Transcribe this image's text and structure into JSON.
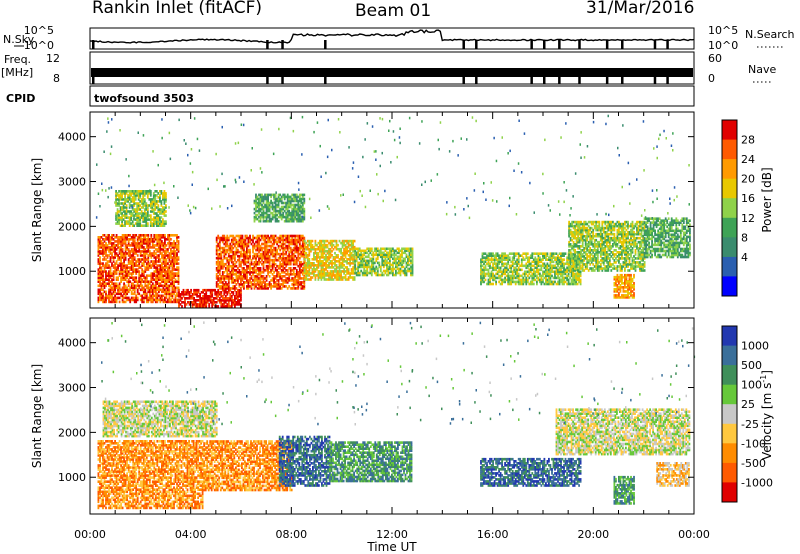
{
  "header": {
    "station": "Rankin Inlet (fitACF)",
    "beam": "Beam 01",
    "date": "31/Mar/2016"
  },
  "status_panels": {
    "nsky_label": "N.Sky",
    "nsearch_label": "N.Search",
    "nsky_ticks": [
      "10^5",
      "10^0"
    ],
    "nsearch_ticks": [
      "10^5",
      "10^0"
    ],
    "freq_label_line1": "Freq.",
    "freq_label_line2": "[MHz]",
    "freq_ticks": [
      "12",
      "8"
    ],
    "nave_label": "Nave",
    "nave_ticks": [
      "60",
      "0"
    ],
    "cpid_label": "CPID",
    "cpid_value": "twofsound 3503"
  },
  "chart_data": [
    {
      "type": "heatmap",
      "name": "power",
      "ylabel": "Slant Range [km]",
      "xlabel": "",
      "yticks": [
        1000,
        2000,
        3000,
        4000
      ],
      "ylim": [
        180,
        4550
      ],
      "xlim": [
        0,
        24
      ],
      "colorbar": {
        "label": "Power [dB]",
        "ticks": [
          "28",
          "24",
          "20",
          "16",
          "12",
          "8",
          "4"
        ],
        "colors": [
          "#e00000",
          "#ff5a00",
          "#ff9a00",
          "#e8c800",
          "#8fd24a",
          "#3ea356",
          "#3a8c6e",
          "#2a5fb0",
          "#0000ff"
        ]
      },
      "regions": [
        {
          "t0": 0.3,
          "t1": 3.5,
          "r0": 300,
          "r1": 1800,
          "level": 7
        },
        {
          "t0": 1.0,
          "t1": 3.0,
          "r0": 2000,
          "r1": 2800,
          "level": 4
        },
        {
          "t0": 3.5,
          "t1": 6.0,
          "r0": 200,
          "r1": 600,
          "level": 8
        },
        {
          "t0": 5.0,
          "t1": 8.5,
          "r0": 600,
          "r1": 1800,
          "level": 7
        },
        {
          "t0": 8.5,
          "t1": 10.5,
          "r0": 800,
          "r1": 1700,
          "level": 5
        },
        {
          "t0": 10.5,
          "t1": 12.8,
          "r0": 900,
          "r1": 1500,
          "level": 4
        },
        {
          "t0": 6.5,
          "t1": 8.5,
          "r0": 2100,
          "r1": 2700,
          "level": 3
        },
        {
          "t0": 15.5,
          "t1": 19.5,
          "r0": 700,
          "r1": 1400,
          "level": 4
        },
        {
          "t0": 19.0,
          "t1": 22.0,
          "r0": 1000,
          "r1": 2100,
          "level": 4
        },
        {
          "t0": 20.8,
          "t1": 21.6,
          "r0": 400,
          "r1": 900,
          "level": 6
        },
        {
          "t0": 22.0,
          "t1": 23.8,
          "r0": 1300,
          "r1": 2200,
          "level": 3
        }
      ]
    },
    {
      "type": "heatmap",
      "name": "velocity",
      "ylabel": "Slant Range [km]",
      "xlabel": "Time UT",
      "xticks": [
        "00:00",
        "04:00",
        "08:00",
        "12:00",
        "16:00",
        "20:00",
        "00:00"
      ],
      "yticks": [
        1000,
        2000,
        3000,
        4000
      ],
      "ylim": [
        180,
        4550
      ],
      "xlim": [
        0,
        24
      ],
      "colorbar": {
        "label": "Velocity [m s^-1]",
        "ticks": [
          "1000",
          "500",
          "100",
          "25",
          "-25",
          "-100",
          "-500",
          "-1000"
        ],
        "colors": [
          "#2238b0",
          "#3a6f9a",
          "#3f8f5a",
          "#66c83a",
          "#c8c8c8",
          "#ffc840",
          "#ff8c00",
          "#ff5a00",
          "#e00000"
        ]
      },
      "regions": [
        {
          "t0": 0.3,
          "t1": 4.5,
          "r0": 300,
          "r1": 1800,
          "level": 2
        },
        {
          "t0": 0.5,
          "t1": 5.0,
          "r0": 1900,
          "r1": 2700,
          "level": 4
        },
        {
          "t0": 4.5,
          "t1": 8.0,
          "r0": 700,
          "r1": 1800,
          "level": 2
        },
        {
          "t0": 7.5,
          "t1": 9.5,
          "r0": 800,
          "r1": 1900,
          "level": 7
        },
        {
          "t0": 9.5,
          "t1": 12.8,
          "r0": 900,
          "r1": 1800,
          "level": 6
        },
        {
          "t0": 15.5,
          "t1": 19.5,
          "r0": 800,
          "r1": 1400,
          "level": 7
        },
        {
          "t0": 18.5,
          "t1": 23.8,
          "r0": 1500,
          "r1": 2500,
          "level": 4
        },
        {
          "t0": 20.8,
          "t1": 21.6,
          "r0": 400,
          "r1": 1000,
          "level": 6
        },
        {
          "t0": 22.5,
          "t1": 23.8,
          "r0": 800,
          "r1": 1300,
          "level": 3
        }
      ]
    }
  ]
}
